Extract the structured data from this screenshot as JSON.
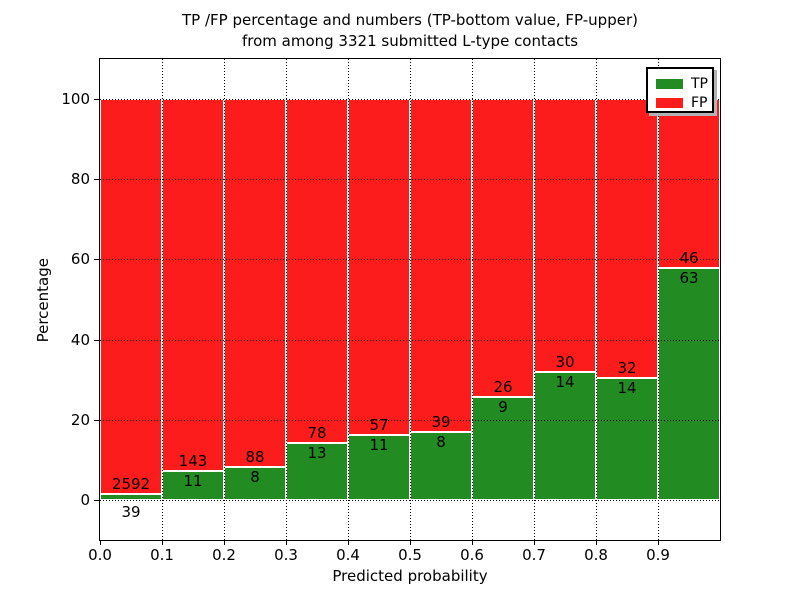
{
  "title": {
    "line1": "TP /FP percentage and numbers (TP-bottom value, FP-upper)",
    "line2": "from among 3321 submitted L-type contacts"
  },
  "axes": {
    "xlabel": "Predicted probability",
    "ylabel": "Percentage"
  },
  "legend": {
    "position": "upper right",
    "items": [
      {
        "label": "TP",
        "color": "#228b22"
      },
      {
        "label": "FP",
        "color": "#fd1c1c"
      }
    ]
  },
  "chart_data": {
    "type": "bar",
    "stacked": true,
    "title": "TP /FP percentage and numbers (TP-bottom value, FP-upper) from among 3321 submitted L-type contacts",
    "xlabel": "Predicted probability",
    "ylabel": "Percentage",
    "total_contacts": 3321,
    "bin_width": 0.1,
    "bins": [
      "0.0",
      "0.1",
      "0.2",
      "0.3",
      "0.4",
      "0.5",
      "0.6",
      "0.7",
      "0.8",
      "0.9"
    ],
    "series": [
      {
        "name": "TP",
        "color": "#228b22",
        "counts": [
          39,
          11,
          8,
          13,
          11,
          8,
          9,
          14,
          14,
          63
        ]
      },
      {
        "name": "FP",
        "color": "#fd1c1c",
        "counts": [
          2592,
          143,
          88,
          78,
          57,
          39,
          26,
          30,
          32,
          46
        ]
      }
    ],
    "tp_percent_heights": [
      1.5,
      7.1,
      8.3,
      14.3,
      16.2,
      17.0,
      25.7,
      31.8,
      30.4,
      57.8
    ],
    "xticks": [
      "0.0",
      "0.1",
      "0.2",
      "0.3",
      "0.4",
      "0.5",
      "0.6",
      "0.7",
      "0.8",
      "0.9"
    ],
    "yticks": [
      0,
      20,
      40,
      60,
      80,
      100
    ],
    "xlim": [
      0.0,
      1.0
    ],
    "ylim": [
      -10,
      110
    ],
    "grid": "dotted",
    "legend_position": "upper right"
  }
}
